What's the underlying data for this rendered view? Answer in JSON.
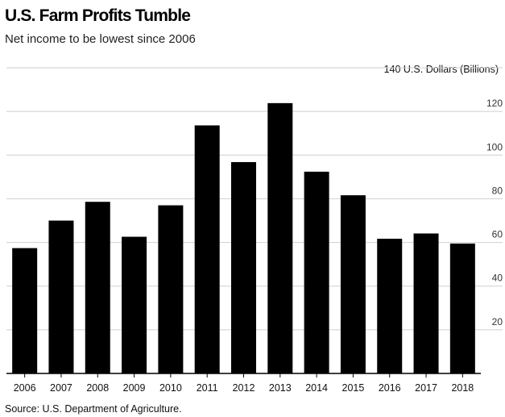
{
  "chart_data": {
    "type": "bar",
    "title": "U.S. Farm Profits Tumble",
    "subtitle": "Net income to be lowest since 2006",
    "unit_label": "U.S. Dollars (Billions)",
    "source": "Source: U.S. Department of Agriculture.",
    "categories": [
      "2006",
      "2007",
      "2008",
      "2009",
      "2010",
      "2011",
      "2012",
      "2013",
      "2014",
      "2015",
      "2016",
      "2017",
      "2018"
    ],
    "values": [
      57.4,
      70.0,
      78.6,
      62.6,
      77.0,
      113.6,
      96.8,
      123.8,
      92.4,
      81.6,
      61.7,
      64.1,
      59.5
    ],
    "ylim": [
      0,
      140
    ],
    "yticks": [
      20,
      40,
      60,
      80,
      100,
      120,
      140
    ],
    "grid": true,
    "bar_color": "#000000"
  }
}
